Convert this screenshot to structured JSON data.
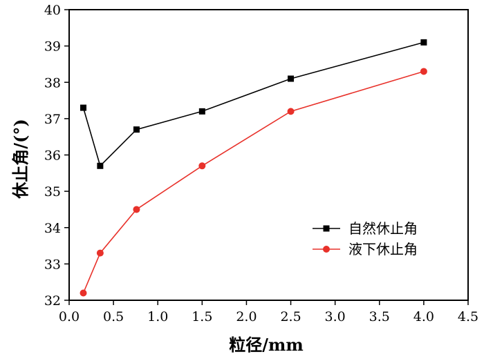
{
  "chart_data": {
    "type": "line",
    "xlabel": "粒径/mm",
    "ylabel": "休止角/(°)",
    "xlim": [
      0.0,
      4.5
    ],
    "ylim": [
      32,
      40
    ],
    "xticks": [
      "0.0",
      "0.5",
      "1.0",
      "1.5",
      "2.0",
      "2.5",
      "3.0",
      "3.5",
      "4.0",
      "4.5"
    ],
    "yticks": [
      "32",
      "33",
      "34",
      "35",
      "36",
      "37",
      "38",
      "39",
      "40"
    ],
    "grid": false,
    "legend_position": "lower-right",
    "series": [
      {
        "name": "自然休止角",
        "color": "#000000",
        "marker": "square",
        "x": [
          0.16,
          0.35,
          0.76,
          1.5,
          2.5,
          4.0
        ],
        "y": [
          37.3,
          35.7,
          36.7,
          37.2,
          38.1,
          39.1
        ]
      },
      {
        "name": "液下休止角",
        "color": "#e8312a",
        "marker": "circle",
        "x": [
          0.16,
          0.35,
          0.76,
          1.5,
          2.5,
          4.0
        ],
        "y": [
          32.2,
          33.3,
          34.5,
          35.7,
          37.2,
          38.3
        ]
      }
    ]
  }
}
